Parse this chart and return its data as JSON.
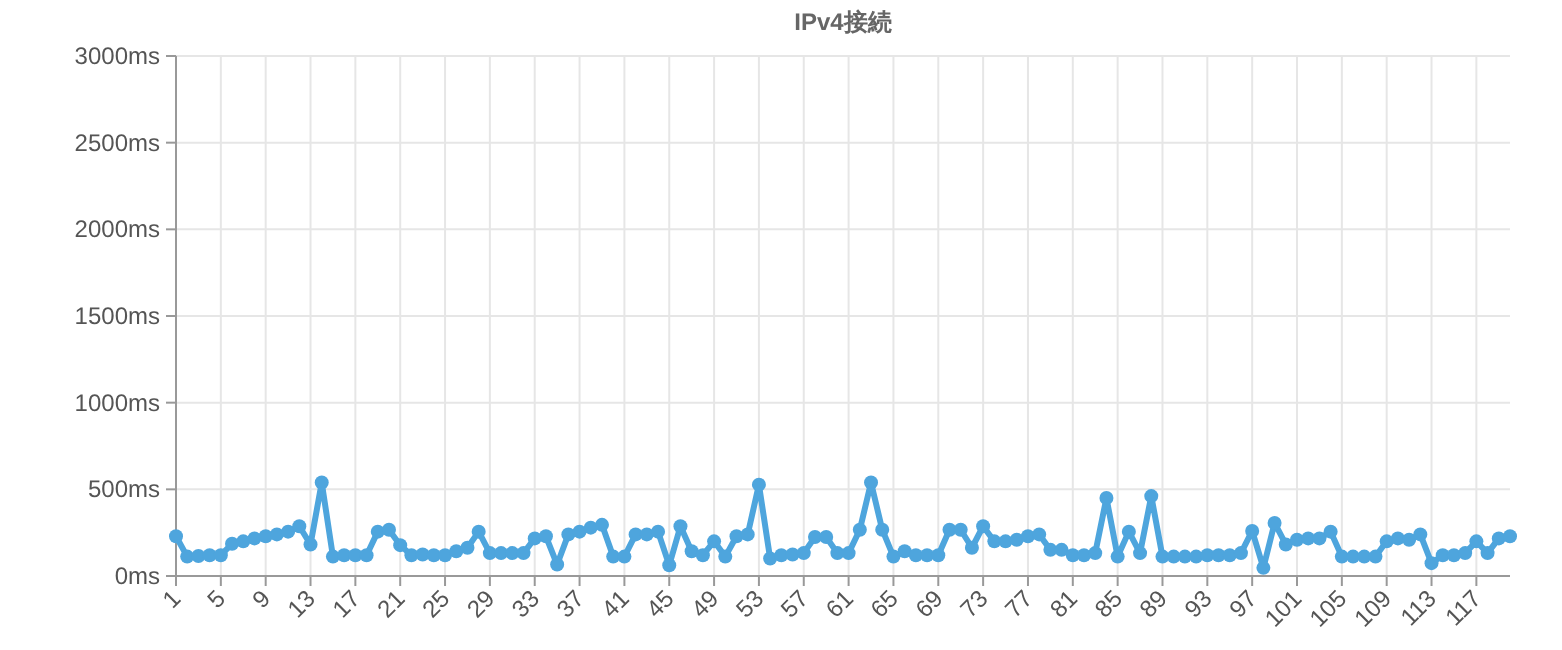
{
  "chart_data": {
    "type": "line",
    "title": "IPv4接続",
    "categories": [
      "1",
      null,
      null,
      null,
      "5",
      null,
      null,
      null,
      "9",
      null,
      null,
      null,
      "13",
      null,
      null,
      null,
      "17",
      null,
      null,
      null,
      "21",
      null,
      null,
      null,
      "25",
      null,
      null,
      null,
      "29",
      null,
      null,
      null,
      "33",
      null,
      null,
      null,
      "37",
      null,
      null,
      null,
      "41",
      null,
      null,
      null,
      "45",
      null,
      null,
      null,
      "49",
      null,
      null,
      null,
      "53",
      null,
      null,
      null,
      "57",
      null,
      null,
      null,
      "61",
      null,
      null,
      null,
      "65",
      null,
      null,
      null,
      "69",
      null,
      null,
      null,
      "73",
      null,
      null,
      null,
      "77",
      null,
      null,
      null,
      "81",
      null,
      null,
      null,
      "85",
      null,
      null,
      null,
      "89",
      null,
      null,
      null,
      "93",
      null,
      null,
      null,
      "97",
      null,
      null,
      null,
      "101",
      null,
      null,
      null,
      "105",
      null,
      null,
      null,
      "109",
      null,
      null,
      null,
      "113",
      null,
      null,
      null,
      "117",
      null,
      null,
      null
    ],
    "series": [
      {
        "color": "#4ea5dd",
        "values": [
          229,
          112,
          115,
          120,
          120,
          186,
          200,
          217,
          229,
          240,
          256,
          287,
          182,
          539,
          112,
          120,
          120,
          120,
          256,
          267,
          178,
          120,
          124,
          120,
          120,
          143,
          163,
          256,
          132,
          132,
          132,
          132,
          217,
          229,
          66,
          240,
          256,
          279,
          295,
          112,
          112,
          240,
          240,
          256,
          62,
          287,
          143,
          120,
          200,
          112,
          229,
          240,
          527,
          101,
          120,
          124,
          132,
          225,
          225,
          132,
          132,
          267,
          539,
          267,
          112,
          143,
          120,
          120,
          120,
          267,
          267,
          163,
          287,
          200,
          200,
          209,
          229,
          240,
          151,
          151,
          120,
          120,
          132,
          450,
          112,
          256,
          132,
          461,
          112,
          112,
          112,
          112,
          120,
          120,
          120,
          132,
          260,
          47,
          306,
          182,
          209,
          217,
          217,
          256,
          112,
          112,
          112,
          112,
          200,
          217,
          209,
          240,
          74,
          120,
          120,
          132,
          200,
          132,
          217,
          229
        ]
      }
    ],
    "ylim": [
      0,
      3000
    ],
    "yticks": [
      {
        "value": 0,
        "label": "0ms"
      },
      {
        "value": 500,
        "label": "500ms"
      },
      {
        "value": 1000,
        "label": "1000ms"
      },
      {
        "value": 1500,
        "label": "1500ms"
      },
      {
        "value": 2000,
        "label": "2000ms"
      },
      {
        "value": 2500,
        "label": "2500ms"
      },
      {
        "value": 3000,
        "label": "3000ms"
      }
    ],
    "grid": true,
    "marker": "circle",
    "line_style": "solid"
  }
}
